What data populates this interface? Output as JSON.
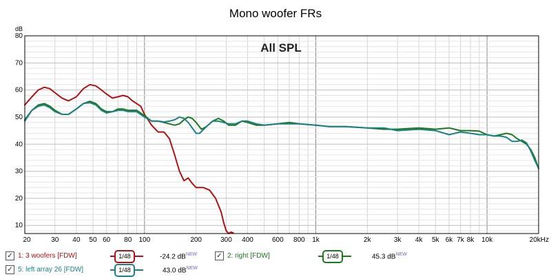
{
  "chart_data": {
    "type": "line",
    "title": "Mono woofer FRs",
    "annotation": "All SPL",
    "ylabel": "dB",
    "xscale": "log",
    "xlim": [
      20,
      20000
    ],
    "ylim": [
      7,
      80
    ],
    "grid": true,
    "legend_placement": "bottom",
    "xticks": [
      {
        "v": 20,
        "label": "20"
      },
      {
        "v": 30,
        "label": "30"
      },
      {
        "v": 40,
        "label": "40"
      },
      {
        "v": 50,
        "label": "50"
      },
      {
        "v": 60,
        "label": "60"
      },
      {
        "v": 80,
        "label": "80"
      },
      {
        "v": 100,
        "label": "100"
      },
      {
        "v": 200,
        "label": "200"
      },
      {
        "v": 300,
        "label": "300"
      },
      {
        "v": 400,
        "label": "400"
      },
      {
        "v": 600,
        "label": "600"
      },
      {
        "v": 800,
        "label": "800"
      },
      {
        "v": 1000,
        "label": "1k"
      },
      {
        "v": 2000,
        "label": "2k"
      },
      {
        "v": 3000,
        "label": "3k"
      },
      {
        "v": 4000,
        "label": "4k"
      },
      {
        "v": 5000,
        "label": "5k"
      },
      {
        "v": 6000,
        "label": "6k"
      },
      {
        "v": 7000,
        "label": "7k"
      },
      {
        "v": 8000,
        "label": "8k"
      },
      {
        "v": 10000,
        "label": "10k"
      },
      {
        "v": 20000,
        "label": "20kHz"
      }
    ],
    "yticks": [
      10,
      20,
      30,
      40,
      50,
      60,
      70,
      80
    ],
    "series": [
      {
        "name": "1: 3 woofers [FDW]",
        "color": "#b01010",
        "value_text": "-24.2 dB",
        "points": [
          [
            20,
            54.5
          ],
          [
            22,
            57.5
          ],
          [
            24,
            60
          ],
          [
            26,
            61
          ],
          [
            28,
            60.5
          ],
          [
            30,
            59
          ],
          [
            33,
            57
          ],
          [
            36,
            56
          ],
          [
            40,
            57.5
          ],
          [
            44,
            60.5
          ],
          [
            48,
            62
          ],
          [
            52,
            61.5
          ],
          [
            56,
            60
          ],
          [
            60,
            58.5
          ],
          [
            65,
            57
          ],
          [
            70,
            57.5
          ],
          [
            75,
            58
          ],
          [
            80,
            57.5
          ],
          [
            85,
            56
          ],
          [
            90,
            55
          ],
          [
            95,
            54
          ],
          [
            100,
            51
          ],
          [
            110,
            47
          ],
          [
            120,
            44.5
          ],
          [
            130,
            44.5
          ],
          [
            140,
            42
          ],
          [
            150,
            36
          ],
          [
            160,
            30
          ],
          [
            170,
            26.5
          ],
          [
            180,
            27.5
          ],
          [
            190,
            25.5
          ],
          [
            200,
            24
          ],
          [
            220,
            24
          ],
          [
            240,
            23
          ],
          [
            260,
            20
          ],
          [
            280,
            15
          ],
          [
            290,
            11
          ],
          [
            300,
            8
          ],
          [
            310,
            7
          ],
          [
            320,
            7.5
          ],
          [
            330,
            7.2
          ]
        ]
      },
      {
        "name": "2: right [FDW]",
        "color": "#1a7a1a",
        "value_text": "45.3 dB",
        "points": [
          [
            20,
            49
          ],
          [
            22,
            52.5
          ],
          [
            24,
            54.5
          ],
          [
            26,
            55
          ],
          [
            28,
            54
          ],
          [
            30,
            52.5
          ],
          [
            33,
            51
          ],
          [
            36,
            51
          ],
          [
            40,
            53
          ],
          [
            44,
            55
          ],
          [
            48,
            55.8
          ],
          [
            52,
            55
          ],
          [
            56,
            53
          ],
          [
            60,
            52
          ],
          [
            65,
            52
          ],
          [
            70,
            53
          ],
          [
            75,
            53
          ],
          [
            80,
            52.5
          ],
          [
            90,
            52.5
          ],
          [
            100,
            50.5
          ],
          [
            110,
            48.5
          ],
          [
            120,
            48.5
          ],
          [
            130,
            48
          ],
          [
            140,
            47.5
          ],
          [
            150,
            47
          ],
          [
            160,
            47.5
          ],
          [
            170,
            49
          ],
          [
            180,
            50
          ],
          [
            190,
            49.5
          ],
          [
            200,
            48
          ],
          [
            215,
            45.5
          ],
          [
            230,
            46.5
          ],
          [
            250,
            48.5
          ],
          [
            270,
            49.5
          ],
          [
            290,
            48.5
          ],
          [
            310,
            47
          ],
          [
            340,
            47
          ],
          [
            370,
            48.5
          ],
          [
            400,
            48
          ],
          [
            450,
            47
          ],
          [
            500,
            47
          ],
          [
            600,
            47.5
          ],
          [
            700,
            48
          ],
          [
            800,
            47.5
          ],
          [
            1000,
            47
          ],
          [
            1200,
            46.5
          ],
          [
            1500,
            46.5
          ],
          [
            2000,
            46
          ],
          [
            2500,
            45.5
          ],
          [
            3000,
            45.5
          ],
          [
            4000,
            46
          ],
          [
            5000,
            45.5
          ],
          [
            6000,
            46
          ],
          [
            7000,
            45
          ],
          [
            8000,
            45
          ],
          [
            9000,
            44.8
          ],
          [
            10000,
            43.5
          ],
          [
            11000,
            43
          ],
          [
            12000,
            43.5
          ],
          [
            13000,
            44
          ],
          [
            14000,
            43.5
          ],
          [
            15000,
            42
          ],
          [
            16000,
            41
          ],
          [
            17000,
            40
          ],
          [
            18000,
            38
          ],
          [
            19000,
            35
          ],
          [
            20000,
            31
          ]
        ]
      },
      {
        "name": "5: left array 26 [FDW]",
        "color": "#1a7f86",
        "value_text": "43.0 dB",
        "points": [
          [
            20,
            48.5
          ],
          [
            22,
            52.5
          ],
          [
            24,
            54
          ],
          [
            26,
            54.5
          ],
          [
            28,
            53.5
          ],
          [
            30,
            52
          ],
          [
            33,
            51
          ],
          [
            36,
            51
          ],
          [
            40,
            53
          ],
          [
            44,
            55
          ],
          [
            48,
            55.3
          ],
          [
            52,
            54.5
          ],
          [
            56,
            52.5
          ],
          [
            60,
            51.5
          ],
          [
            65,
            52
          ],
          [
            70,
            52.5
          ],
          [
            75,
            52.5
          ],
          [
            80,
            52
          ],
          [
            90,
            52
          ],
          [
            100,
            50
          ],
          [
            110,
            48.5
          ],
          [
            120,
            48.5
          ],
          [
            130,
            48.2
          ],
          [
            140,
            48.5
          ],
          [
            150,
            49
          ],
          [
            160,
            50
          ],
          [
            170,
            49.5
          ],
          [
            180,
            48
          ],
          [
            190,
            46
          ],
          [
            200,
            44
          ],
          [
            210,
            44
          ],
          [
            230,
            46.5
          ],
          [
            250,
            48.5
          ],
          [
            270,
            48.5
          ],
          [
            290,
            48
          ],
          [
            310,
            47.5
          ],
          [
            340,
            47.5
          ],
          [
            370,
            48.5
          ],
          [
            400,
            48.5
          ],
          [
            450,
            47.5
          ],
          [
            500,
            47
          ],
          [
            600,
            47.5
          ],
          [
            700,
            47.5
          ],
          [
            800,
            47.5
          ],
          [
            1000,
            47
          ],
          [
            1200,
            46.5
          ],
          [
            1500,
            46.5
          ],
          [
            2000,
            46
          ],
          [
            2500,
            46
          ],
          [
            3000,
            45
          ],
          [
            4000,
            45.5
          ],
          [
            5000,
            45
          ],
          [
            6000,
            43.5
          ],
          [
            7000,
            44.5
          ],
          [
            8000,
            44
          ],
          [
            9000,
            43.5
          ],
          [
            10000,
            43.5
          ],
          [
            11000,
            43
          ],
          [
            12000,
            43
          ],
          [
            13000,
            42.5
          ],
          [
            14000,
            41
          ],
          [
            15000,
            41
          ],
          [
            16000,
            41.5
          ],
          [
            17000,
            40.5
          ],
          [
            18000,
            37.5
          ],
          [
            19000,
            34
          ],
          [
            20000,
            31
          ]
        ]
      }
    ]
  },
  "legend": {
    "smooth_label": "1/48",
    "new_badge": "NEW",
    "check_mark": "✓"
  }
}
